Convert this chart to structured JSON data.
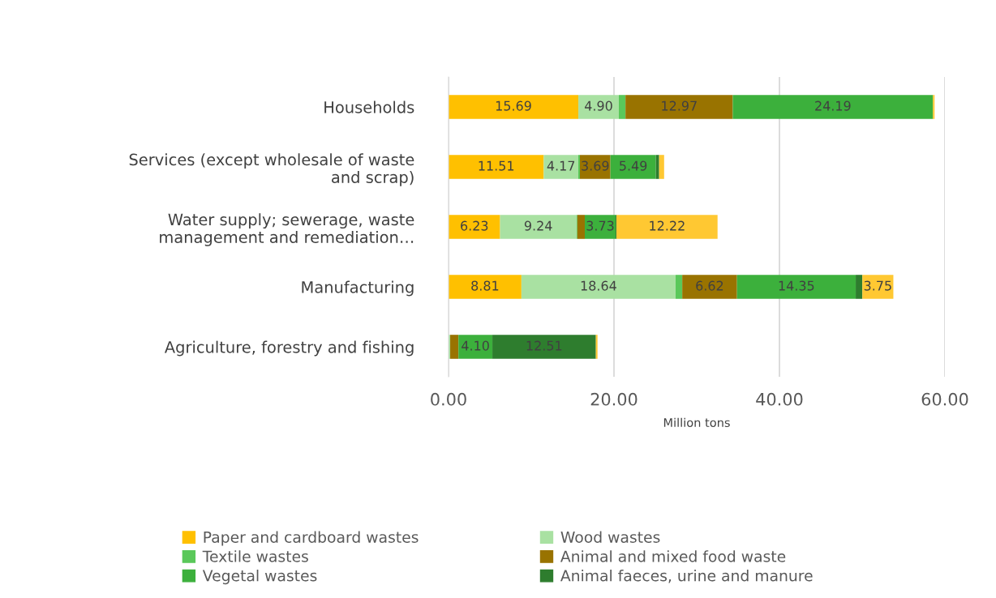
{
  "chart_data": {
    "type": "bar",
    "orientation": "horizontal",
    "stacked": true,
    "categories": [
      "Households",
      "Services (except wholesale of waste\nand scrap)",
      "Water supply; sewerage, waste\nmanagement and remediation…",
      "Manufacturing",
      "Agriculture, forestry and fishing"
    ],
    "series": [
      {
        "name": "Paper and cardboard wastes",
        "color": "#ffc000",
        "values": [
          15.69,
          11.51,
          6.23,
          8.81,
          null
        ],
        "value_labels": [
          "15.69",
          "11.51",
          "6.23",
          "8.81",
          null
        ]
      },
      {
        "name": "Wood wastes",
        "color": "#a9e1a2",
        "values": [
          4.9,
          4.17,
          9.24,
          18.64,
          0.2
        ],
        "value_labels": [
          "4.90",
          "4.17",
          "9.24",
          "18.64",
          null
        ]
      },
      {
        "name": "Textile wastes",
        "color": "#5ac85a",
        "values": [
          0.8,
          0.2,
          0.1,
          0.8,
          0
        ],
        "value_labels": [
          null,
          null,
          null,
          null,
          null
        ]
      },
      {
        "name": "Animal and mixed food waste",
        "color": "#997300",
        "values": [
          12.97,
          3.69,
          0.9,
          6.62,
          1.0
        ],
        "value_labels": [
          "12.97",
          "3.69",
          null,
          "6.62",
          null
        ]
      },
      {
        "name": "Vegetal wastes",
        "color": "#3cb03c",
        "values": [
          24.19,
          5.49,
          3.73,
          14.35,
          4.1
        ],
        "value_labels": [
          "24.19",
          "5.49",
          "3.73",
          "14.35",
          "4.10"
        ]
      },
      {
        "name": "Animal faeces, urine and manure",
        "color": "#2e7d2e",
        "values": [
          0,
          0.4,
          0.1,
          0.8,
          12.51
        ],
        "value_labels": [
          null,
          null,
          null,
          null,
          "12.51"
        ]
      },
      {
        "color": "#ffc832",
        "values": [
          0.2,
          0.6,
          12.22,
          3.75,
          0.2
        ],
        "value_labels": [
          null,
          null,
          "12.22",
          "3.75",
          null
        ]
      }
    ],
    "xlim": [
      0,
      60
    ],
    "xticks": [
      {
        "value": 0,
        "label": "0.00"
      },
      {
        "value": 20,
        "label": "20.00"
      },
      {
        "value": 40,
        "label": "40.00"
      },
      {
        "value": 60,
        "label": "60.00"
      }
    ],
    "xlabel": "Million tons",
    "grid": "x",
    "legend": "bottom"
  }
}
